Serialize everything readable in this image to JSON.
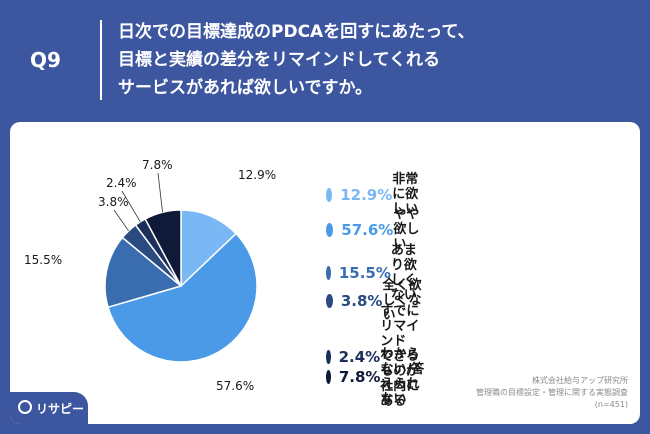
{
  "header": {
    "qnum": "Q9",
    "title_lines": [
      "日次での目標達成のPDCAを回すにあたって、",
      "目標と実績の差分をリマインドしてくれる",
      "サービスがあれば欲しいですか。"
    ]
  },
  "chart_data": {
    "type": "pie",
    "categories": [
      "非常に欲しい",
      "やや欲しい",
      "あまり欲しくない",
      "全く欲しくない",
      "すでにリマインドできるものが社内にある",
      "わからない/答えられない"
    ],
    "values": [
      12.9,
      57.6,
      15.5,
      3.8,
      2.4,
      7.8
    ],
    "value_labels": [
      "12.9%",
      "57.6%",
      "15.5%",
      "3.8%",
      "2.4%",
      "7.8%"
    ],
    "colors": [
      "#7ab8f5",
      "#4a9ae8",
      "#3a6db0",
      "#2a4a80",
      "#1c2f5a",
      "#0f1a38"
    ],
    "legend_label_lines": [
      [
        "非常に欲しい"
      ],
      [
        "やや欲しい"
      ],
      [
        "あまり欲しくない"
      ],
      [
        "全く欲しくない"
      ],
      [
        "すでにリマインド",
        "できるものが社内にある"
      ],
      [
        "わからない/答えられない"
      ]
    ],
    "legend_placement": "right"
  },
  "source": {
    "lines": [
      "株式会社給与アップ研究所",
      "管理職の目標設定・管理に関する実態調査",
      "(n=451)"
    ]
  },
  "logo": {
    "text": "リサピー"
  }
}
